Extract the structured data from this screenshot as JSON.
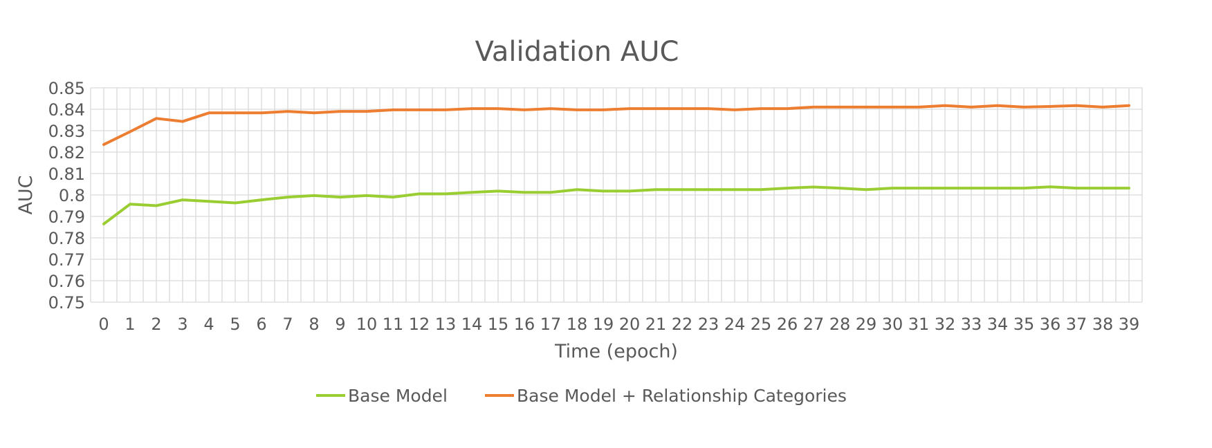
{
  "chart_data": {
    "type": "line",
    "title": "Validation AUC",
    "xlabel": "Time (epoch)",
    "ylabel": "AUC",
    "categories": [
      "0",
      "1",
      "2",
      "3",
      "4",
      "5",
      "6",
      "7",
      "8",
      "9",
      "10",
      "11",
      "12",
      "13",
      "14",
      "15",
      "16",
      "17",
      "18",
      "19",
      "20",
      "21",
      "22",
      "23",
      "24",
      "25",
      "26",
      "27",
      "28",
      "29",
      "30",
      "31",
      "32",
      "33",
      "34",
      "35",
      "36",
      "37",
      "38",
      "39"
    ],
    "ylim": [
      0.75,
      0.85
    ],
    "yticks": [
      "0.85",
      "0.84",
      "0.83",
      "0.82",
      "0.81",
      "0.8",
      "0.79",
      "0.78",
      "0.77",
      "0.76",
      "0.75"
    ],
    "grid": true,
    "legend_position": "bottom",
    "series": [
      {
        "name": "Base Model",
        "color": "#9acd32",
        "values": [
          0.7865,
          0.7957,
          0.795,
          0.7977,
          0.797,
          0.7963,
          0.7977,
          0.799,
          0.7997,
          0.799,
          0.7997,
          0.799,
          0.8005,
          0.8005,
          0.8012,
          0.8018,
          0.8012,
          0.8012,
          0.8025,
          0.8018,
          0.8018,
          0.8025,
          0.8025,
          0.8025,
          0.8025,
          0.8025,
          0.8032,
          0.8037,
          0.8032,
          0.8025,
          0.8032,
          0.8032,
          0.8032,
          0.8032,
          0.8032,
          0.8032,
          0.8038,
          0.8032,
          0.8032,
          0.8032
        ]
      },
      {
        "name": "Base Model + Relationship Categories",
        "color": "#ed7d31",
        "values": [
          0.8235,
          0.8295,
          0.8357,
          0.8343,
          0.8383,
          0.8383,
          0.8383,
          0.839,
          0.8383,
          0.839,
          0.839,
          0.8397,
          0.8397,
          0.8397,
          0.8403,
          0.8403,
          0.8397,
          0.8403,
          0.8397,
          0.8397,
          0.8403,
          0.8403,
          0.8403,
          0.8403,
          0.8397,
          0.8403,
          0.8403,
          0.841,
          0.841,
          0.841,
          0.841,
          0.841,
          0.8417,
          0.841,
          0.8417,
          0.841,
          0.8413,
          0.8417,
          0.841,
          0.8417
        ]
      }
    ]
  }
}
